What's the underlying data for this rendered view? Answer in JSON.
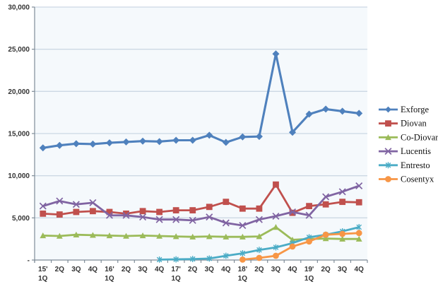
{
  "chart_data": {
    "type": "line",
    "title": "",
    "xlabel": "",
    "ylabel": "",
    "ylim": [
      0,
      30000
    ],
    "grid": true,
    "legend_position": "right",
    "categories": [
      "15'\n1Q",
      "2Q",
      "3Q",
      "4Q",
      "16'\n1Q",
      "2Q",
      "3Q",
      "4Q",
      "17'\n1Q",
      "2Q",
      "3Q",
      "4Q",
      "18'\n1Q",
      "2Q",
      "3Q",
      "4Q",
      "19'\n1Q",
      "2Q",
      "3Q",
      "4Q"
    ],
    "y_ticks": [
      {
        "value": 0,
        "label": "-"
      },
      {
        "value": 5000,
        "label": "5,000"
      },
      {
        "value": 10000,
        "label": "10,000"
      },
      {
        "value": 15000,
        "label": "15,000"
      },
      {
        "value": 20000,
        "label": "20,000"
      },
      {
        "value": 25000,
        "label": "25,000"
      },
      {
        "value": 30000,
        "label": "30,000"
      }
    ],
    "series": [
      {
        "name": "Exforge",
        "color": "#4F81BD",
        "marker": "diamond",
        "values": [
          13300,
          13600,
          13800,
          13750,
          13900,
          14000,
          14100,
          14050,
          14200,
          14200,
          14800,
          13950,
          14600,
          14650,
          24450,
          15150,
          17300,
          17900,
          17650,
          17400
        ]
      },
      {
        "name": "Diovan",
        "color": "#C0504D",
        "marker": "square",
        "values": [
          5500,
          5400,
          5700,
          5800,
          5700,
          5500,
          5800,
          5700,
          5900,
          5900,
          6300,
          6900,
          6100,
          6100,
          8950,
          5600,
          6400,
          6600,
          6900,
          6850
        ]
      },
      {
        "name": "Co-Diovan",
        "color": "#9BBB59",
        "marker": "triangle",
        "values": [
          2900,
          2850,
          3000,
          2950,
          2900,
          2850,
          2900,
          2850,
          2800,
          2750,
          2800,
          2750,
          2750,
          2800,
          3900,
          2400,
          2500,
          2550,
          2500,
          2500
        ]
      },
      {
        "name": "Lucentis",
        "color": "#8064A2",
        "marker": "x",
        "values": [
          6400,
          7000,
          6600,
          6800,
          5300,
          5300,
          5100,
          4800,
          4800,
          4700,
          5100,
          4400,
          4100,
          4800,
          5200,
          5700,
          5300,
          7500,
          8100,
          8800
        ]
      },
      {
        "name": "Entresto",
        "color": "#4BACC6",
        "marker": "asterisk",
        "values": [
          null,
          null,
          null,
          null,
          null,
          null,
          null,
          50,
          80,
          120,
          180,
          500,
          800,
          1200,
          1500,
          2000,
          2700,
          3000,
          3400,
          3900
        ]
      },
      {
        "name": "Cosentyx",
        "color": "#F79646",
        "marker": "circle",
        "values": [
          null,
          null,
          null,
          null,
          null,
          null,
          null,
          null,
          null,
          null,
          null,
          null,
          50,
          250,
          500,
          1600,
          2200,
          3000,
          3100,
          3200
        ]
      }
    ],
    "colors": {
      "plot_background": "#f5f9fc",
      "gridline": "#ccd8e4",
      "axis_line": "#7f8c98",
      "tick_text": "#333333",
      "legend_text": "#111111",
      "chart_background": "#ffffff"
    }
  }
}
